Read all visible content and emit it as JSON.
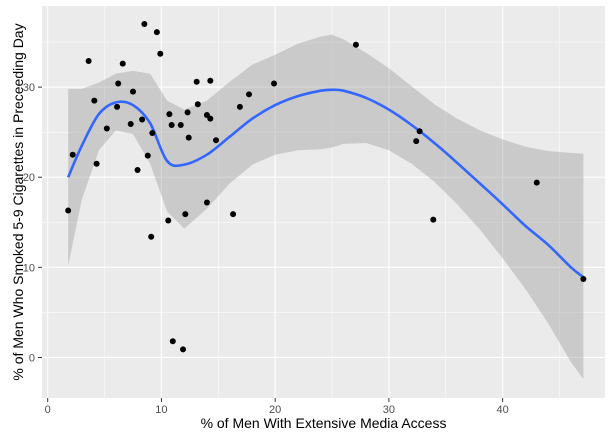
{
  "chart_data": {
    "type": "scatter",
    "xlabel": "% of Men With Extensive Media Access",
    "ylabel": "% of Men Who Smoked 5-9 Cigarettes in Preceeding Day",
    "xlim": [
      -0.5,
      49
    ],
    "ylim": [
      -4.5,
      39
    ],
    "x_ticks": [
      0,
      10,
      20,
      30,
      40
    ],
    "y_ticks": [
      0,
      10,
      20,
      30
    ],
    "grid": true,
    "points": [
      {
        "x": 1.8,
        "y": 16.3
      },
      {
        "x": 2.2,
        "y": 22.5
      },
      {
        "x": 3.6,
        "y": 32.9
      },
      {
        "x": 4.1,
        "y": 28.5
      },
      {
        "x": 4.3,
        "y": 21.5
      },
      {
        "x": 5.2,
        "y": 25.4
      },
      {
        "x": 6.1,
        "y": 27.8
      },
      {
        "x": 6.2,
        "y": 30.4
      },
      {
        "x": 6.6,
        "y": 32.6
      },
      {
        "x": 7.3,
        "y": 25.9
      },
      {
        "x": 7.5,
        "y": 29.5
      },
      {
        "x": 7.9,
        "y": 20.8
      },
      {
        "x": 8.3,
        "y": 26.4
      },
      {
        "x": 8.5,
        "y": 37.0
      },
      {
        "x": 8.8,
        "y": 22.4
      },
      {
        "x": 9.1,
        "y": 13.4
      },
      {
        "x": 9.2,
        "y": 24.9
      },
      {
        "x": 9.6,
        "y": 36.1
      },
      {
        "x": 9.9,
        "y": 33.7
      },
      {
        "x": 10.6,
        "y": 15.2
      },
      {
        "x": 10.7,
        "y": 27.0
      },
      {
        "x": 10.9,
        "y": 25.8
      },
      {
        "x": 11.0,
        "y": 1.8
      },
      {
        "x": 11.7,
        "y": 25.8
      },
      {
        "x": 11.9,
        "y": 0.9
      },
      {
        "x": 12.1,
        "y": 15.9
      },
      {
        "x": 12.3,
        "y": 27.2
      },
      {
        "x": 12.4,
        "y": 24.4
      },
      {
        "x": 13.1,
        "y": 30.6
      },
      {
        "x": 13.2,
        "y": 28.1
      },
      {
        "x": 14.0,
        "y": 17.2
      },
      {
        "x": 14.0,
        "y": 26.9
      },
      {
        "x": 14.3,
        "y": 30.7
      },
      {
        "x": 14.3,
        "y": 26.5
      },
      {
        "x": 14.8,
        "y": 24.1
      },
      {
        "x": 16.3,
        "y": 15.9
      },
      {
        "x": 16.9,
        "y": 27.8
      },
      {
        "x": 17.7,
        "y": 29.2
      },
      {
        "x": 19.9,
        "y": 30.4
      },
      {
        "x": 27.1,
        "y": 34.7
      },
      {
        "x": 32.4,
        "y": 24.0
      },
      {
        "x": 32.7,
        "y": 25.1
      },
      {
        "x": 33.9,
        "y": 15.3
      },
      {
        "x": 43.0,
        "y": 19.4
      },
      {
        "x": 47.1,
        "y": 8.7
      }
    ],
    "smooth": {
      "x": [
        1.8,
        3,
        4.5,
        6,
        7.5,
        9,
        10.5,
        12,
        14,
        16,
        18,
        20,
        22,
        24,
        25,
        26,
        28,
        30,
        32,
        34,
        36,
        38,
        40,
        42,
        44,
        46,
        47.1
      ],
      "y": [
        20.0,
        23.5,
        27.0,
        28.3,
        28.0,
        26.0,
        21.8,
        21.4,
        22.5,
        24.5,
        26.5,
        28.0,
        29.0,
        29.6,
        29.7,
        29.6,
        28.8,
        27.5,
        25.8,
        23.8,
        21.6,
        19.3,
        17.0,
        14.6,
        12.5,
        10.0,
        8.9
      ],
      "lower": [
        10.2,
        17.5,
        23.0,
        25.2,
        24.8,
        21.5,
        16.2,
        14.3,
        16.5,
        19.3,
        21.4,
        22.5,
        23.0,
        23.1,
        23.3,
        23.7,
        23.8,
        23.0,
        21.5,
        19.5,
        17.0,
        14.2,
        11.0,
        7.6,
        3.8,
        -0.5,
        -2.4
      ],
      "upper": [
        29.8,
        29.8,
        30.5,
        31.5,
        31.8,
        31.5,
        28.5,
        27.5,
        28.5,
        30.6,
        32.5,
        33.6,
        34.8,
        35.6,
        35.8,
        35.3,
        33.8,
        32.1,
        30.1,
        28.1,
        26.5,
        25.2,
        24.2,
        23.4,
        22.9,
        22.7,
        22.6
      ]
    },
    "colors": {
      "panel": "#ebebeb",
      "grid_major": "#ffffff",
      "point": "#000000",
      "smooth_line": "#3366ff",
      "ribbon": "#999999"
    }
  }
}
